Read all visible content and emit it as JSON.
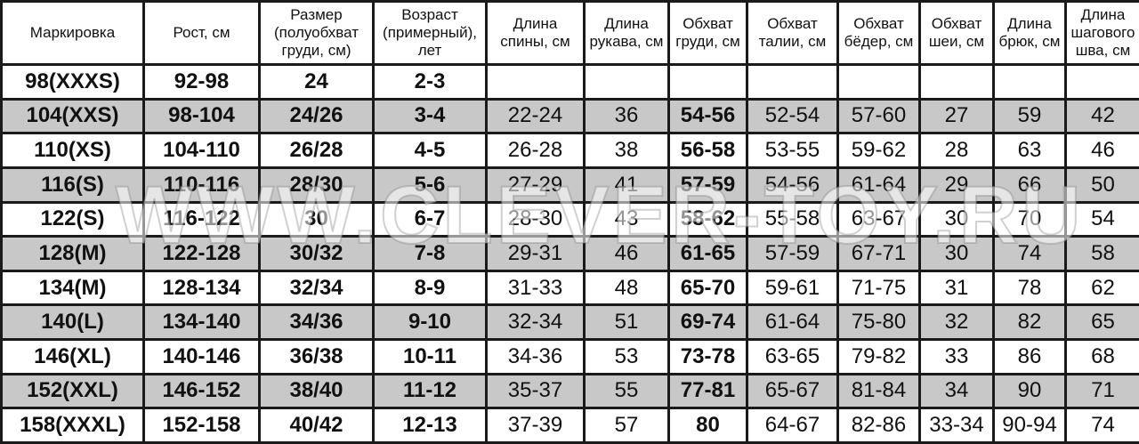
{
  "headers": [
    "Маркировка",
    "Рост, см",
    "Размер (полуобхват груди, см)",
    "Возраст (примерный), лет",
    "Длина спины, см",
    "Длина рукава, см",
    "Обхват груди, см",
    "Обхват талии, см",
    "Обхват бёдер, см",
    "Обхват шеи, см",
    "Длина брюк, см",
    "Длина шагового шва, см"
  ],
  "rows": [
    [
      "98(XXXS)",
      "92-98",
      "24",
      "2-3",
      "",
      "",
      "",
      "",
      "",
      "",
      "",
      ""
    ],
    [
      "104(XXS)",
      "98-104",
      "24/26",
      "3-4",
      "22-24",
      "36",
      "54-56",
      "52-54",
      "57-60",
      "27",
      "59",
      "42"
    ],
    [
      "110(XS)",
      "104-110",
      "26/28",
      "4-5",
      "26-28",
      "38",
      "56-58",
      "53-55",
      "59-62",
      "28",
      "63",
      "46"
    ],
    [
      "116(S)",
      "110-116",
      "28/30",
      "5-6",
      "27-29",
      "41",
      "57-59",
      "54-56",
      "61-64",
      "29",
      "66",
      "50"
    ],
    [
      "122(S)",
      "116-122",
      "30",
      "6-7",
      "28-30",
      "43",
      "58-62",
      "55-58",
      "63-67",
      "30",
      "70",
      "54"
    ],
    [
      "128(M)",
      "122-128",
      "30/32",
      "7-8",
      "29-31",
      "46",
      "61-65",
      "57-59",
      "67-71",
      "30",
      "74",
      "58"
    ],
    [
      "134(M)",
      "128-134",
      "32/34",
      "8-9",
      "31-33",
      "48",
      "65-70",
      "59-61",
      "71-75",
      "31",
      "78",
      "62"
    ],
    [
      "140(L)",
      "134-140",
      "34/36",
      "9-10",
      "32-34",
      "51",
      "69-74",
      "61-64",
      "75-80",
      "32",
      "82",
      "65"
    ],
    [
      "146(XL)",
      "140-146",
      "36/38",
      "10-11",
      "34-36",
      "53",
      "73-78",
      "63-65",
      "79-82",
      "33",
      "86",
      "68"
    ],
    [
      "152(XXL)",
      "146-152",
      "38/40",
      "11-12",
      "35-37",
      "55",
      "77-81",
      "65-67",
      "81-84",
      "34",
      "90",
      "71"
    ],
    [
      "158(XXXL)",
      "152-158",
      "40/42",
      "12-13",
      "37-39",
      "57",
      "80",
      "64-67",
      "82-86",
      "33-34",
      "90-94",
      "74"
    ]
  ],
  "watermark": "WWW.CLEVER-TOY.RU",
  "colors": {
    "stripe": "#c8c8c8",
    "border": "#1a1a1a"
  }
}
